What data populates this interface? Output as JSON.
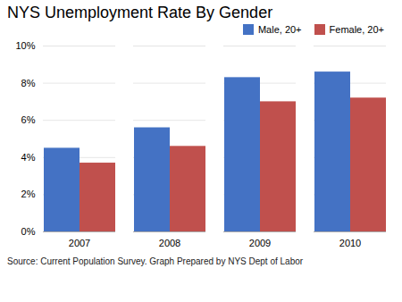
{
  "chart_data": {
    "type": "bar",
    "title": "NYS Unemployment Rate By Gender",
    "categories": [
      "2007",
      "2008",
      "2009",
      "2010"
    ],
    "series": [
      {
        "name": "Male, 20+",
        "color": "#4472C4",
        "values": [
          0.045,
          0.056,
          0.083,
          0.086
        ]
      },
      {
        "name": "Female, 20+",
        "color": "#C0504D",
        "values": [
          0.037,
          0.046,
          0.07,
          0.072
        ]
      }
    ],
    "ylim": [
      0,
      0.1
    ],
    "yticks": [
      {
        "value": 0,
        "label": "0%"
      },
      {
        "value": 0.02,
        "label": "2%"
      },
      {
        "value": 0.04,
        "label": "4%"
      },
      {
        "value": 0.06,
        "label": "6%"
      },
      {
        "value": 0.08,
        "label": "8%"
      },
      {
        "value": 0.1,
        "label": "10%"
      }
    ],
    "grid": true,
    "legend": "upper right",
    "caption": "Source: Current Population Survey. Graph Prepared by NYS Dept of Labor"
  }
}
